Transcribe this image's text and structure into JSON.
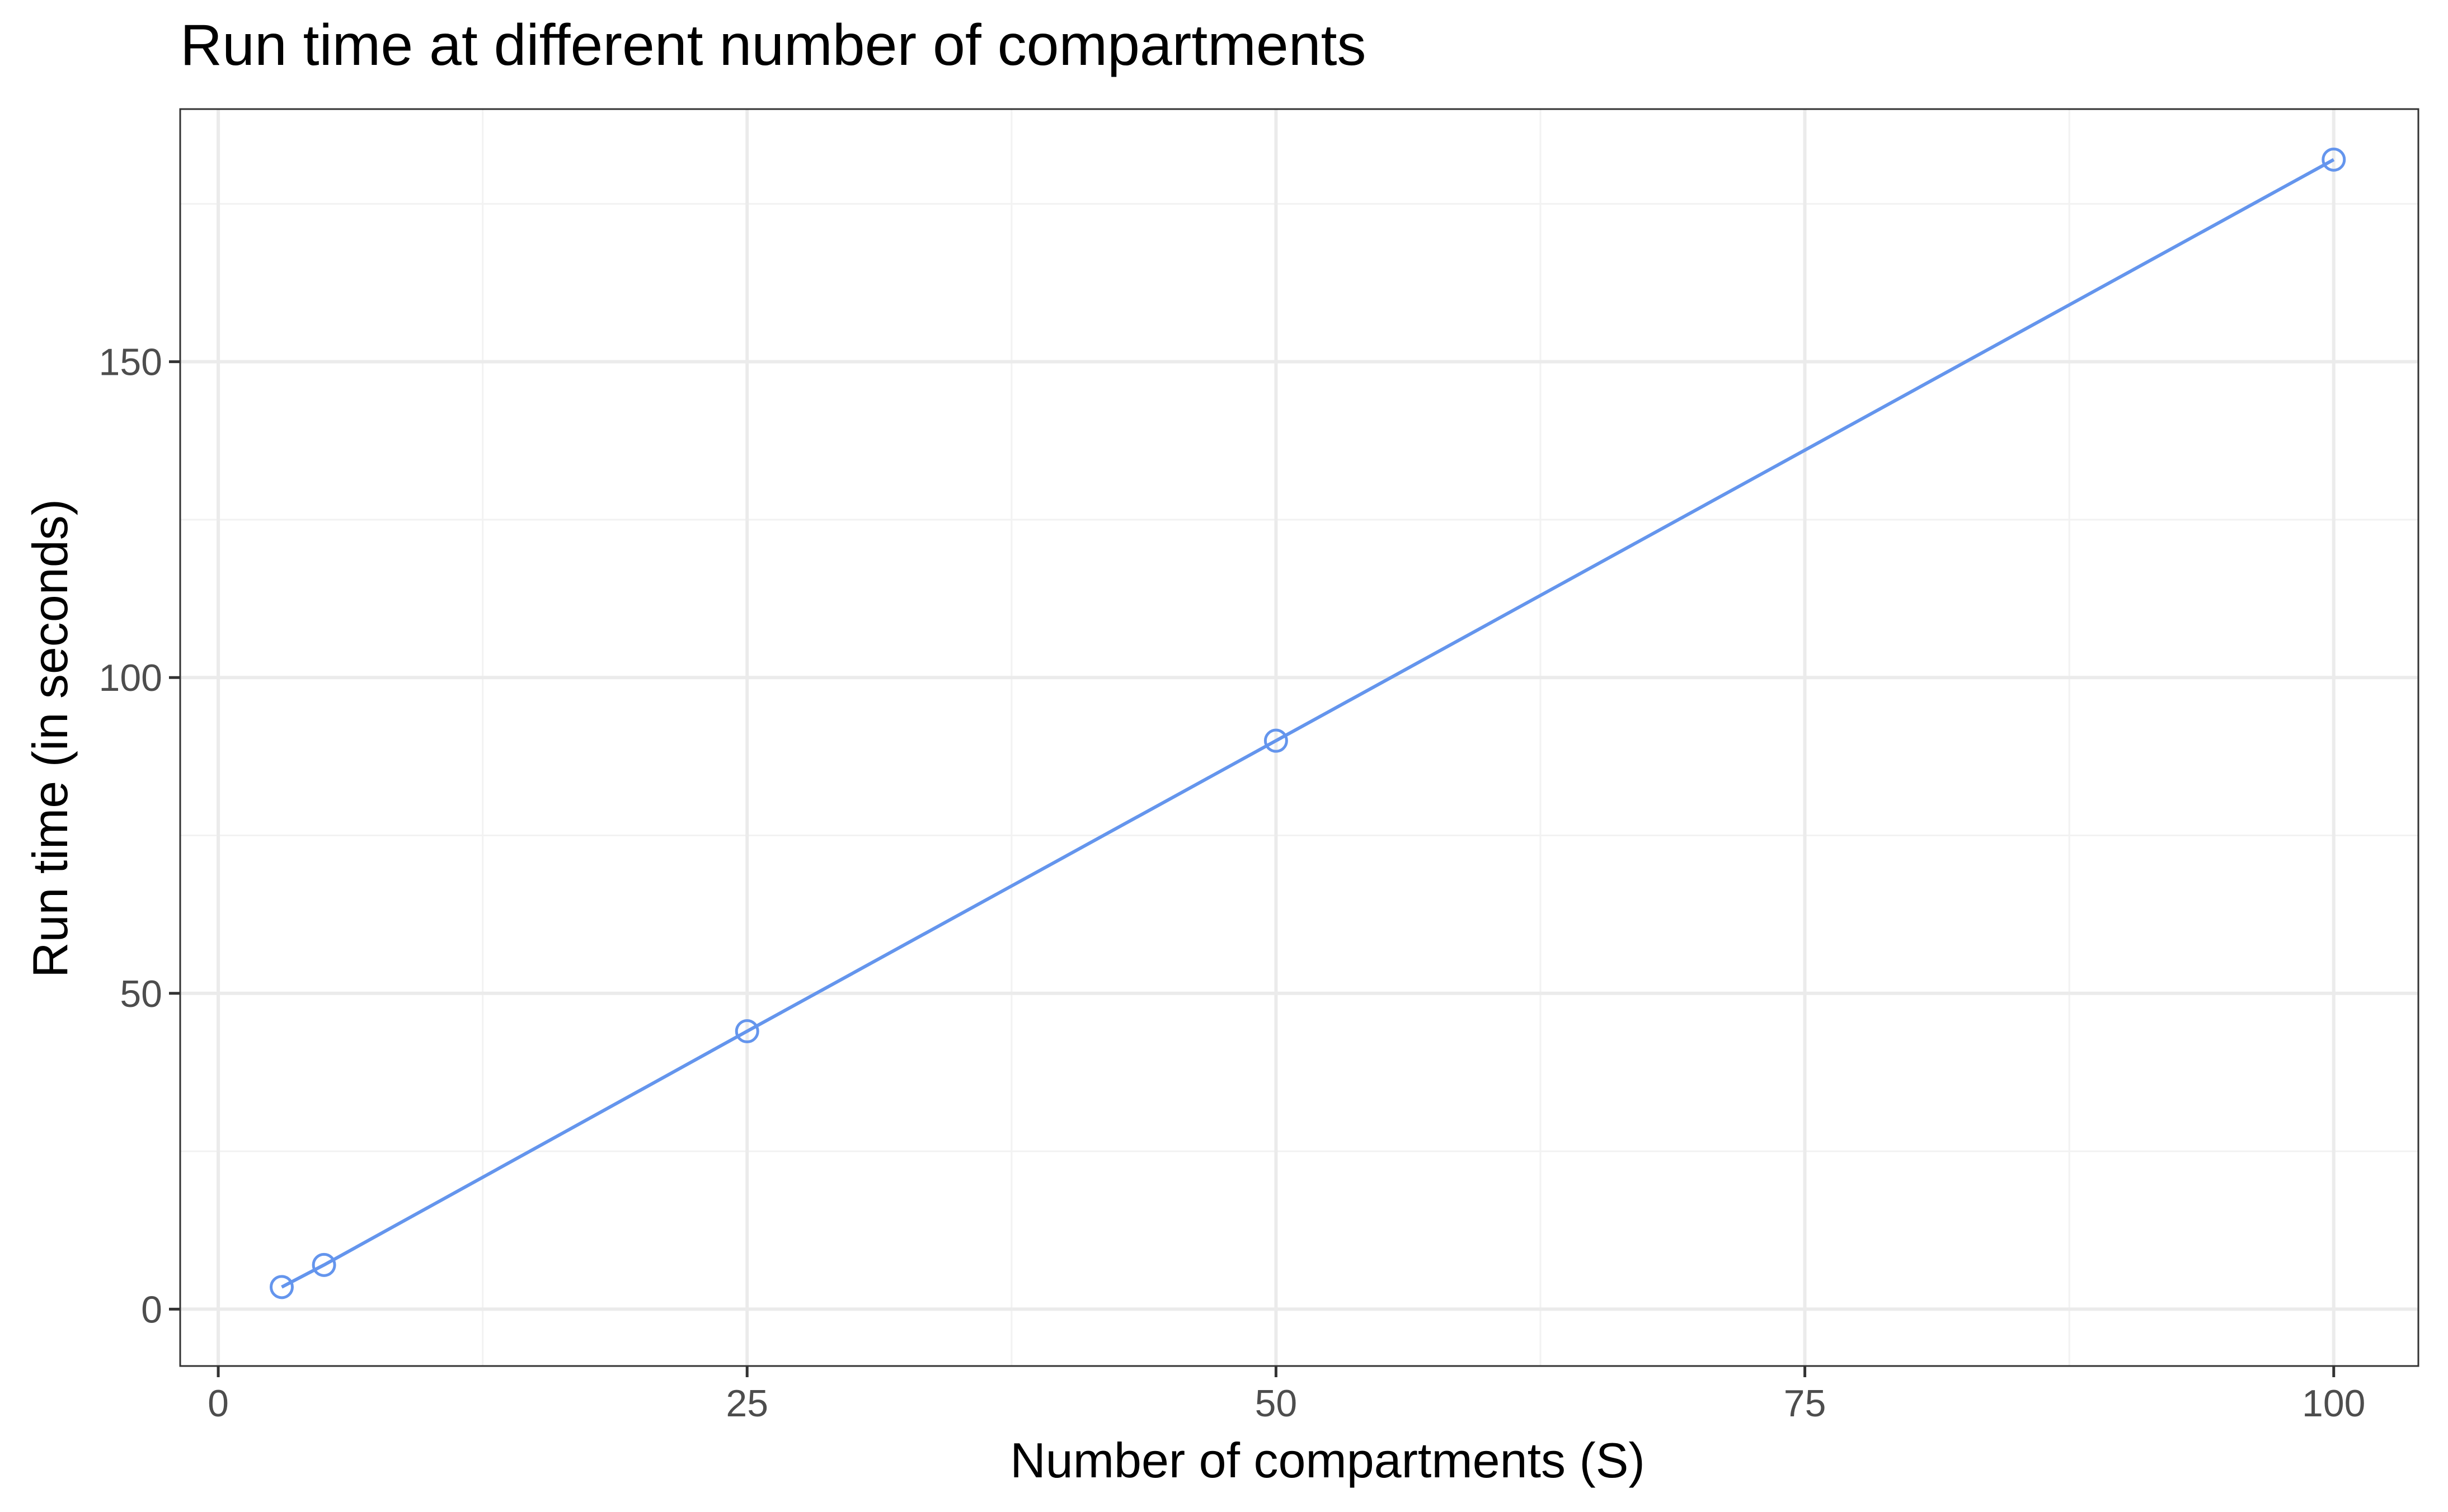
{
  "chart_data": {
    "type": "line",
    "title": "Run time at different number of compartments",
    "xlabel": "Number of compartments (S)",
    "ylabel": "Run time (in seconds)",
    "xlim": [
      -1.8,
      104
    ],
    "ylim": [
      -9,
      190
    ],
    "x_ticks": [
      0,
      25,
      50,
      75,
      100
    ],
    "y_ticks": [
      0,
      50,
      100,
      150
    ],
    "x_tick_labels": [
      "0",
      "25",
      "50",
      "75",
      "100"
    ],
    "y_tick_labels": [
      "0",
      "50",
      "100",
      "150"
    ],
    "x_minor": [
      12.5,
      37.5,
      62.5,
      87.5
    ],
    "y_minor": [
      25,
      75,
      125,
      175
    ],
    "grid": true,
    "legend": "none",
    "series": [
      {
        "color": "#6495ED",
        "marker": "open-circle",
        "x": [
          3,
          5,
          25,
          50,
          100
        ],
        "y": [
          3.5,
          7,
          44,
          90,
          182
        ]
      }
    ]
  }
}
